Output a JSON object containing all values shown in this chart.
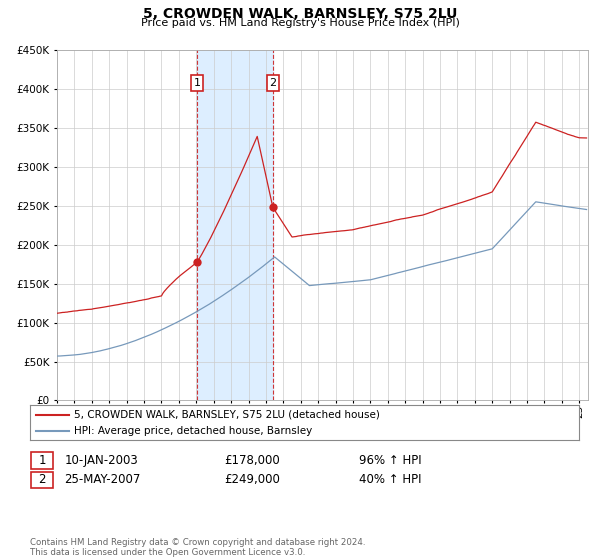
{
  "title": "5, CROWDEN WALK, BARNSLEY, S75 2LU",
  "subtitle": "Price paid vs. HM Land Registry's House Price Index (HPI)",
  "legend_line1": "5, CROWDEN WALK, BARNSLEY, S75 2LU (detached house)",
  "legend_line2": "HPI: Average price, detached house, Barnsley",
  "footnote1": "Contains HM Land Registry data © Crown copyright and database right 2024.",
  "footnote2": "This data is licensed under the Open Government Licence v3.0.",
  "transaction1_date": "10-JAN-2003",
  "transaction1_price": "£178,000",
  "transaction1_hpi": "96% ↑ HPI",
  "transaction2_date": "25-MAY-2007",
  "transaction2_price": "£249,000",
  "transaction2_hpi": "40% ↑ HPI",
  "hpi_color": "#7799bb",
  "property_color": "#cc2222",
  "shading_color": "#ddeeff",
  "grid_color": "#cccccc",
  "background_color": "#ffffff",
  "ylim": [
    0,
    450000
  ],
  "yticks": [
    0,
    50000,
    100000,
    150000,
    200000,
    250000,
    300000,
    350000,
    400000,
    450000
  ],
  "xmin": 1995.0,
  "xmax": 2025.5,
  "transaction1_x": 2003.04,
  "transaction1_y": 178000,
  "transaction2_x": 2007.4,
  "transaction2_y": 249000
}
